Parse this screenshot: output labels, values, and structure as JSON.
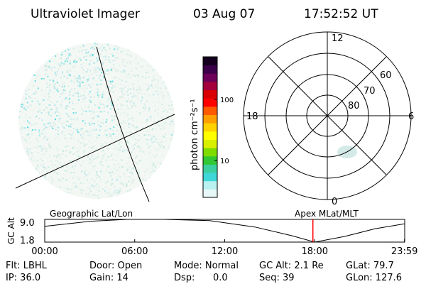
{
  "header": {
    "instrument": "Ultraviolet Imager",
    "date": "03 Aug 07",
    "time": "17:52:52 UT"
  },
  "colorbar": {
    "unit_label": "photon cm⁻²s⁻¹",
    "ticks": [
      {
        "label": "100",
        "value": 100
      },
      {
        "label": "10",
        "value": 10
      }
    ],
    "range": [
      2.5,
      500
    ],
    "colors": [
      "#e8f8f8",
      "#b9f0f0",
      "#3fd7d7",
      "#3cd0a0",
      "#33c833",
      "#7fdc00",
      "#d9ef00",
      "#ffff00",
      "#ffd200",
      "#ffa000",
      "#ff5a00",
      "#ff0000",
      "#d80000",
      "#a3003c",
      "#6d0058",
      "#3d004a",
      "#14001e"
    ]
  },
  "polar_grid": {
    "mlt_labels": {
      "top": "12",
      "right": "6",
      "bottom": "0",
      "left": "18"
    },
    "lat_labels": [
      "60",
      "70",
      "80"
    ]
  },
  "timeline": {
    "y_axis_label": "GC Alt",
    "y_ticks": [
      "9.0",
      "1.8"
    ],
    "left_title": "Geographic Lat/Lon",
    "right_title": "Apex MLat/MLT",
    "x_ticks": [
      "00:00",
      "06:00",
      "12:00",
      "18:00",
      "23:59"
    ],
    "x_tick_hours": [
      0,
      6,
      12,
      18,
      23.983
    ],
    "x_range_hours": [
      0,
      24
    ],
    "current_time_hours": 17.88,
    "orbit_points": [
      [
        0,
        6.8
      ],
      [
        3,
        8.4
      ],
      [
        5.5,
        9.0
      ],
      [
        8,
        9.0
      ],
      [
        11,
        8.6
      ],
      [
        14,
        6.6
      ],
      [
        16.5,
        3.8
      ],
      [
        18,
        1.8
      ],
      [
        20,
        3.6
      ],
      [
        22,
        6.0
      ],
      [
        23.983,
        7.6
      ]
    ],
    "marker_color": "#ff0000"
  },
  "status": {
    "filter": "Flt: LBHL",
    "ip": "IP: 36.0",
    "door": "Door: Open",
    "gain": "Gain: 14",
    "mode": "Mode: Normal",
    "dsp": "Dsp:",
    "dsp_value": "0.0",
    "gc_alt": "GC Alt: 2.1 Re",
    "seq": "Seq: 39",
    "glat": "GLat:  79.7",
    "glon": "GLon: 127.6"
  }
}
